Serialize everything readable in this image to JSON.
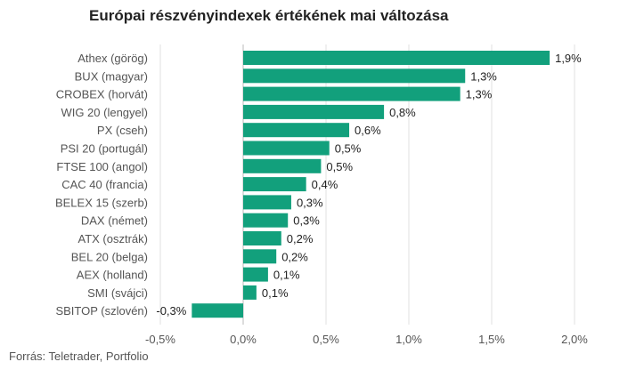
{
  "chart_data": {
    "type": "bar",
    "orientation": "horizontal",
    "title": "Európai részvényindexek értékének mai változása",
    "categories": [
      "Athex (görög)",
      "BUX (magyar)",
      "CROBEX (horvát)",
      "WIG 20 (lengyel)",
      "PX (cseh)",
      "PSI 20 (portugál)",
      "FTSE 100 (angol)",
      "CAC 40 (francia)",
      "BELEX 15 (szerb)",
      "DAX (német)",
      "ATX (osztrák)",
      "BEL 20 (belga)",
      "AEX (holland)",
      "SMI (svájci)",
      "SBITOP (szlovén)"
    ],
    "values": [
      1.85,
      1.34,
      1.31,
      0.85,
      0.64,
      0.52,
      0.47,
      0.38,
      0.29,
      0.27,
      0.23,
      0.2,
      0.15,
      0.08,
      -0.31
    ],
    "data_labels": [
      "1,9%",
      "1,3%",
      "1,3%",
      "0,8%",
      "0,6%",
      "0,5%",
      "0,5%",
      "0,4%",
      "0,3%",
      "0,3%",
      "0,2%",
      "0,2%",
      "0,1%",
      "0,1%",
      "-0,3%"
    ],
    "x_ticks": [
      -0.5,
      0,
      0.5,
      1.0,
      1.5,
      2.0
    ],
    "x_tick_labels": [
      "-0,5%",
      "0,0%",
      "0,5%",
      "1,0%",
      "1,5%",
      "2,0%"
    ],
    "xlim": [
      -0.5,
      2.0
    ],
    "grid": true,
    "bar_color": "#12a07c",
    "xlabel": "",
    "ylabel": ""
  },
  "source": "Forrás: Teletrader, Portfolio"
}
